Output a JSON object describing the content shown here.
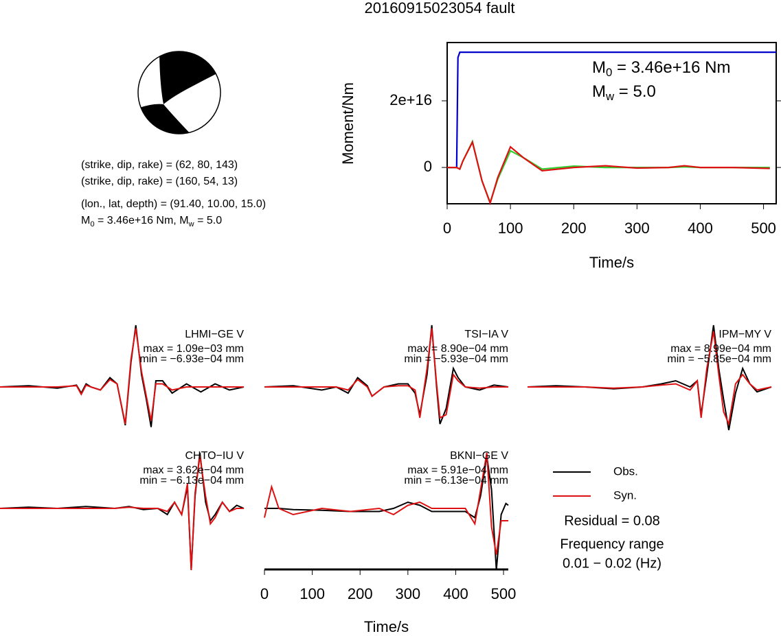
{
  "title": "20160915023054 fault",
  "mechanism": {
    "lines": [
      "(strike, dip, rake) = (62, 80, 143)",
      "(strike, dip, rake) = (160, 54, 13)",
      "(lon., lat, depth) = (91.40, 10.00, 15.0)"
    ],
    "moment_line": [
      {
        "text": "M"
      },
      {
        "sub": "0"
      },
      {
        "text": " = 3.46e+16 Nm, M"
      },
      {
        "sub": "w"
      },
      {
        "text": " = 5.0"
      }
    ]
  },
  "legend_notes": [
    "Residual = 0.08",
    "Frequency range",
    "0.01 − 0.02 (Hz)"
  ],
  "chart_data": [
    {
      "type": "line",
      "ylabel": "Moment/Nm",
      "xlabel": "Time/s",
      "xlim": [
        0,
        520
      ],
      "ylim": [
        -1.09e+16,
        3.75e+16
      ],
      "xticks": [
        0,
        100,
        200,
        300,
        400,
        500
      ],
      "yticks": [
        0,
        {
          "value": 2e+16,
          "label": "2e+16"
        }
      ],
      "annotations": [
        [
          {
            "text": "M"
          },
          {
            "sub": "0"
          },
          {
            "text": " = 3.46e+16 Nm"
          }
        ],
        [
          {
            "text": "M"
          },
          {
            "sub": "w"
          },
          {
            "text": " = 5.0"
          }
        ]
      ],
      "series": [
        {
          "color": "#0000cc",
          "x": [
            0,
            15,
            17,
            20,
            520
          ],
          "values": [
            0,
            0,
            3.3e+16,
            3.46e+16,
            3.46e+16
          ]
        },
        {
          "color": "#33cc33",
          "x": [
            0,
            15,
            20,
            25,
            40,
            55,
            68,
            80,
            100,
            120,
            150,
            200,
            250,
            300,
            350,
            375,
            400,
            450,
            510
          ],
          "values": [
            0,
            0,
            -500000000000000.0,
            2000000000000000.0,
            7800000000000000.0,
            -4000000000000000.0,
            -1.05e+16,
            -3500000000000000.0,
            5000000000000000.0,
            3000000000000000.0,
            -500000000000000.0,
            400000000000000.0,
            0,
            0,
            0,
            200000000000000.0,
            0,
            0,
            0
          ]
        },
        {
          "color": "#dd1111",
          "x": [
            0,
            15,
            20,
            25,
            40,
            55,
            68,
            80,
            100,
            120,
            150,
            200,
            250,
            300,
            350,
            375,
            400,
            450,
            510
          ],
          "values": [
            0,
            0,
            -500000000000000.0,
            2000000000000000.0,
            7600000000000000.0,
            -4000000000000000.0,
            -1.07e+16,
            -3000000000000000.0,
            6200000000000000.0,
            3000000000000000.0,
            -1000000000000000.0,
            0,
            500000000000000.0,
            -200000000000000.0,
            0,
            500000000000000.0,
            0,
            0,
            -300000000000000.0
          ]
        }
      ]
    },
    {
      "type": "line",
      "label": "LHMI−GE V",
      "max_label": "max = 1.09e−03 mm",
      "min_label": "min = −6.93e−04 mm",
      "xlim": [
        0,
        510
      ],
      "ylim": [
        -1,
        1
      ],
      "x": [
        0,
        60,
        120,
        160,
        170,
        180,
        190,
        210,
        230,
        245,
        262,
        274,
        284,
        296,
        306,
        316,
        326,
        340,
        360,
        390,
        420,
        450,
        480,
        510
      ],
      "series": [
        {
          "name": "Obs.",
          "color": "#000000",
          "values": [
            0,
            0.02,
            -0.02,
            0.03,
            -0.1,
            0.05,
            0,
            -0.05,
            0.15,
            0.05,
            -0.62,
            0.4,
            1.0,
            0.2,
            -0.2,
            -0.65,
            0.1,
            0.1,
            -0.1,
            0.05,
            -0.08,
            0.05,
            -0.05,
            0
          ]
        },
        {
          "name": "Syn.",
          "color": "#dd1111",
          "values": [
            0,
            0,
            0,
            0.02,
            -0.12,
            0.03,
            0,
            -0.05,
            0.12,
            0.05,
            -0.6,
            0.45,
            0.95,
            0.25,
            -0.15,
            -0.55,
            0.05,
            0.05,
            -0.05,
            0,
            0,
            0,
            0,
            0
          ]
        }
      ]
    },
    {
      "type": "line",
      "label": "TSI−IA V",
      "max_label": "max = 8.90e−04 mm",
      "min_label": "min = −5.93e−04 mm",
      "xlim": [
        0,
        510
      ],
      "ylim": [
        -1,
        1
      ],
      "x": [
        0,
        60,
        120,
        150,
        175,
        195,
        215,
        225,
        250,
        280,
        300,
        315,
        325,
        340,
        350,
        360,
        367,
        380,
        395,
        405,
        420,
        450,
        480,
        510
      ],
      "series": [
        {
          "name": "Obs.",
          "color": "#000000",
          "values": [
            0,
            0.02,
            -0.05,
            0,
            -0.1,
            0.15,
            0.02,
            -0.15,
            0,
            0.05,
            0.05,
            -0.1,
            -0.45,
            0.2,
            1.0,
            0,
            -0.6,
            -0.35,
            0.3,
            0.15,
            0,
            -0.05,
            0.03,
            0
          ]
        },
        {
          "name": "Syn.",
          "color": "#dd1111",
          "values": [
            0,
            0,
            0,
            0,
            -0.05,
            0.12,
            0,
            -0.15,
            0,
            0.02,
            0.02,
            -0.05,
            -0.5,
            0.3,
            0.95,
            0.05,
            -0.5,
            -0.45,
            0.2,
            0.1,
            0,
            -0.02,
            0,
            0
          ]
        }
      ]
    },
    {
      "type": "line",
      "label": "IPM−MY V",
      "max_label": "max = 8.99e−04 mm",
      "min_label": "min = −5.85e−04 mm",
      "xlim": [
        0,
        510
      ],
      "ylim": [
        -1,
        1
      ],
      "x": [
        0,
        60,
        120,
        180,
        240,
        280,
        310,
        340,
        355,
        363,
        375,
        389,
        400,
        410,
        421,
        435,
        450,
        465,
        480,
        510
      ],
      "series": [
        {
          "name": "Obs.",
          "color": "#000000",
          "values": [
            0,
            0.02,
            0,
            -0.03,
            0,
            0.05,
            0.1,
            0,
            0.1,
            -0.45,
            0.2,
            1.0,
            0.3,
            -0.2,
            -0.7,
            -0.1,
            0.3,
            0.05,
            -0.08,
            0
          ]
        },
        {
          "name": "Syn.",
          "color": "#dd1111",
          "values": [
            0,
            0,
            0,
            -0.02,
            0,
            0.03,
            0.05,
            -0.05,
            0.1,
            -0.5,
            0.3,
            0.9,
            0.2,
            -0.4,
            -0.6,
            0.05,
            0.2,
            0.05,
            -0.05,
            0
          ]
        }
      ]
    },
    {
      "type": "line",
      "label": "CHTO−IU V",
      "max_label": "max = 3.62e−04 mm",
      "min_label": "min = −6.13e−04 mm",
      "xlim": [
        0,
        510
      ],
      "ylim": [
        -1,
        1
      ],
      "x": [
        0,
        60,
        120,
        180,
        240,
        270,
        300,
        330,
        350,
        365,
        380,
        392,
        400,
        408,
        418,
        430,
        440,
        450,
        465,
        480,
        495,
        510
      ],
      "series": [
        {
          "name": "Obs.",
          "color": "#000000",
          "values": [
            0,
            0.02,
            0,
            0.03,
            0,
            0.03,
            -0.02,
            0,
            -0.1,
            0.1,
            -0.1,
            0.35,
            -1.0,
            0.2,
            0.9,
            0.1,
            -0.2,
            -0.1,
            0.1,
            -0.05,
            0.05,
            0
          ]
        },
        {
          "name": "Syn.",
          "color": "#dd1111",
          "values": [
            0,
            0,
            0,
            0,
            0,
            0.02,
            0,
            0,
            -0.05,
            0.1,
            -0.1,
            0.4,
            -1.0,
            0.25,
            0.85,
            0.2,
            -0.25,
            -0.15,
            0.1,
            -0.05,
            0,
            0
          ]
        }
      ]
    },
    {
      "type": "line",
      "label": "BKNI−GE V",
      "max_label": "max = 5.91e−04 mm",
      "min_label": "min = −6.13e−04 mm",
      "xlabel": "Time/s",
      "xticks": [
        0,
        100,
        200,
        300,
        400,
        500
      ],
      "xlim": [
        0,
        510
      ],
      "ylim": [
        -1,
        1
      ],
      "x": [
        0,
        15,
        30,
        60,
        120,
        180,
        240,
        270,
        300,
        325,
        350,
        380,
        420,
        440,
        452,
        465,
        475,
        485,
        495,
        505,
        510
      ],
      "series": [
        {
          "name": "Obs.",
          "color": "#000000",
          "values": [
            0,
            0,
            0,
            -0.02,
            -0.03,
            -0.05,
            -0.05,
            0,
            0.1,
            0.05,
            -0.05,
            -0.05,
            -0.05,
            -0.15,
            0.2,
            0.85,
            0.3,
            -1.0,
            -0.1,
            0.08,
            0.05
          ]
        },
        {
          "name": "Syn.",
          "color": "#dd1111",
          "values": [
            -0.15,
            0.35,
            0,
            -0.1,
            0,
            -0.05,
            0,
            -0.1,
            0.05,
            0.1,
            0,
            0,
            0,
            -0.25,
            0.3,
            0.9,
            -0.3,
            -0.75,
            -0.2,
            -0.2,
            -0.2
          ]
        }
      ]
    }
  ]
}
